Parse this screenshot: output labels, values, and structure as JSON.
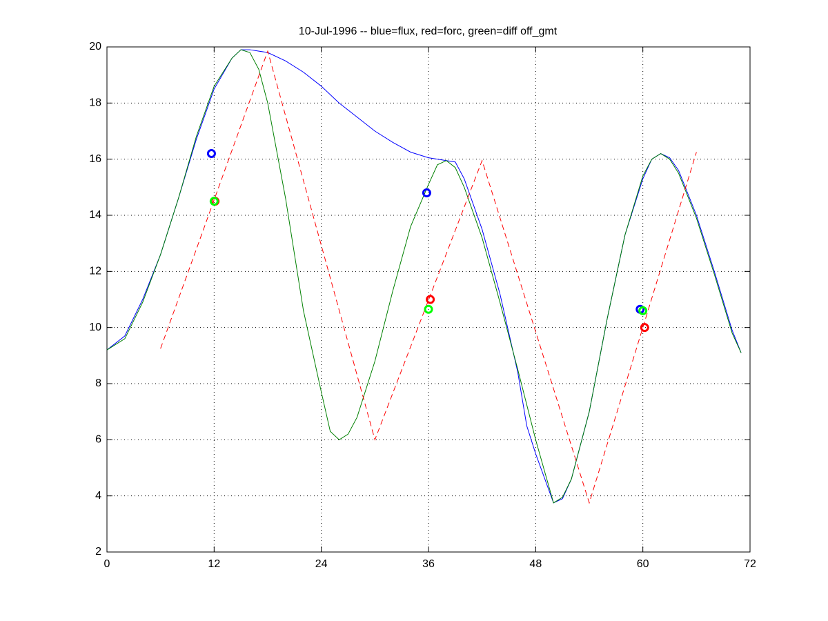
{
  "chart_data": {
    "type": "line",
    "title": "10-Jul-1996 -- blue=flux, red=forc, green=diff off_gmt",
    "xlim": [
      0,
      72
    ],
    "xticks": [
      0,
      12,
      24,
      36,
      48,
      60,
      72
    ],
    "ylim": [
      2,
      20
    ],
    "yticks": [
      2,
      4,
      6,
      8,
      10,
      12,
      14,
      16,
      18,
      20
    ],
    "grid": true,
    "series": [
      {
        "color": "#0000ff",
        "style": "solid",
        "x": [
          0,
          2,
          4,
          6,
          8,
          10,
          12,
          14,
          15,
          16,
          18,
          20,
          22,
          24,
          26,
          28,
          30,
          32,
          34,
          36,
          38,
          39,
          40,
          42,
          44,
          46,
          47,
          48,
          50,
          51,
          52,
          54,
          56,
          58,
          60,
          61,
          62,
          63,
          64,
          66,
          68,
          70,
          71
        ],
        "values": [
          9.2,
          9.7,
          11.0,
          12.6,
          14.6,
          16.7,
          18.5,
          19.6,
          19.9,
          19.9,
          19.8,
          19.5,
          19.1,
          18.6,
          18.0,
          17.5,
          17.0,
          16.6,
          16.25,
          16.05,
          15.95,
          15.9,
          15.3,
          13.5,
          11.2,
          8.4,
          6.5,
          5.5,
          3.75,
          3.9,
          4.6,
          7.0,
          10.3,
          13.3,
          15.3,
          16.0,
          16.2,
          16.05,
          15.6,
          14.0,
          12.0,
          9.9,
          9.1
        ]
      },
      {
        "color": "#008000",
        "style": "solid",
        "x": [
          0,
          2,
          4,
          6,
          8,
          10,
          12,
          14,
          15,
          16,
          17,
          18,
          20,
          22,
          24,
          25,
          26,
          27,
          28,
          30,
          32,
          34,
          36,
          37,
          38,
          39,
          40,
          42,
          44,
          46,
          48,
          50,
          51,
          52,
          54,
          56,
          58,
          60,
          61,
          62,
          63,
          64,
          66,
          68,
          70,
          71
        ],
        "values": [
          9.2,
          9.6,
          10.9,
          12.6,
          14.6,
          16.8,
          18.6,
          19.6,
          19.9,
          19.8,
          19.2,
          18.0,
          14.6,
          10.6,
          7.7,
          6.3,
          6.0,
          6.2,
          6.8,
          8.8,
          11.3,
          13.6,
          15.1,
          15.8,
          15.95,
          15.7,
          15.0,
          13.2,
          10.9,
          8.5,
          6.0,
          3.75,
          3.95,
          4.6,
          7.0,
          10.3,
          13.3,
          15.4,
          16.0,
          16.2,
          16.0,
          15.5,
          13.9,
          11.9,
          9.8,
          9.1
        ]
      },
      {
        "color": "#ff0000",
        "style": "dashed",
        "x": [
          6,
          18,
          30,
          42,
          54,
          66
        ],
        "values": [
          9.25,
          19.85,
          6.0,
          15.95,
          3.75,
          16.25
        ]
      },
      {
        "color": "#0000ff",
        "style": "marker",
        "x": [
          11.7,
          35.8,
          59.7
        ],
        "values": [
          16.2,
          14.8,
          10.65
        ]
      },
      {
        "color": "#ff0000",
        "style": "marker",
        "x": [
          12.1,
          36.2,
          60.2
        ],
        "values": [
          14.5,
          11.0,
          10.0
        ]
      },
      {
        "color": "#00ff00",
        "style": "marker",
        "x": [
          12.0,
          36.0,
          60.0
        ],
        "values": [
          14.5,
          10.65,
          10.6
        ]
      }
    ]
  }
}
